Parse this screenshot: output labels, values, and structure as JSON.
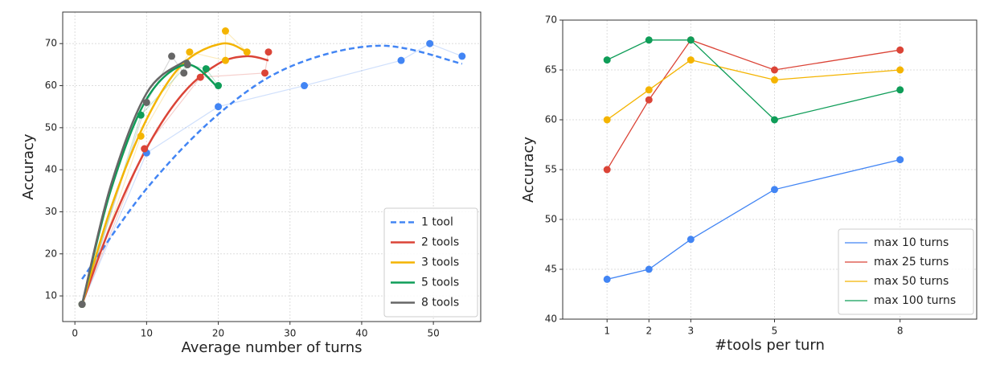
{
  "chart_data": [
    {
      "type": "scatter-fit",
      "xlabel": "Average number of turns",
      "ylabel": "Accuracy",
      "xlim": [
        -1.7,
        56.6
      ],
      "ylim": [
        3.9,
        77.5
      ],
      "xticks": [
        0,
        10,
        20,
        30,
        40,
        50
      ],
      "yticks": [
        10,
        20,
        30,
        40,
        50,
        60,
        70
      ],
      "grid": true,
      "legend": "lower right",
      "series": [
        {
          "name": "1 tool",
          "color": "#4285f4",
          "fit_style": "dashed",
          "x": [
            1,
            10,
            20,
            32,
            45.5,
            49.5,
            54
          ],
          "values": [
            8,
            44,
            55,
            60,
            66,
            70,
            67
          ],
          "fit": {
            "x": [
              1,
              10,
              20,
              30,
              42.5,
              54
            ],
            "y": [
              14,
              35.5,
              53.2,
              64.5,
              69.5,
              65.2
            ]
          }
        },
        {
          "name": "2 tools",
          "color": "#db4437",
          "fit_style": "solid",
          "x": [
            1,
            9.7,
            17.5,
            26.5,
            27
          ],
          "values": [
            8,
            45,
            62,
            63,
            68
          ],
          "fit": {
            "x": [
              1,
              5,
              10,
              15,
              20,
              24,
              27
            ],
            "y": [
              8,
              26.7,
              45.1,
              58,
              65.2,
              67,
              66
            ]
          }
        },
        {
          "name": "3 tools",
          "color": "#f4b400",
          "fit_style": "solid",
          "x": [
            1,
            9.2,
            16,
            21,
            21,
            24
          ],
          "values": [
            8,
            48,
            68,
            66,
            73,
            68
          ],
          "fit": {
            "x": [
              1,
              5,
              10,
              15,
              20.5,
              24
            ],
            "y": [
              8,
              30.8,
              52,
              65.1,
              70,
              68
            ]
          }
        },
        {
          "name": "5 tools",
          "color": "#0f9d58",
          "fit_style": "solid",
          "x": [
            1,
            9.2,
            15.7,
            18.3,
            20
          ],
          "values": [
            8,
            53,
            65,
            64,
            60
          ],
          "fit": {
            "x": [
              1,
              5,
              10,
              15.5,
              20
            ],
            "y": [
              8,
              35.1,
              56.8,
              65,
              59.5
            ]
          }
        },
        {
          "name": "8 tools",
          "color": "#666666",
          "fit_style": "solid",
          "x": [
            1,
            10,
            13.5,
            15.2,
            15.7
          ],
          "values": [
            8,
            56,
            67,
            63,
            65
          ],
          "fit": {
            "x": [
              1,
              5,
              10,
              15,
              16
            ],
            "y": [
              8,
              36.2,
              58.2,
              65.5,
              65.2
            ]
          }
        }
      ]
    },
    {
      "type": "line",
      "xlabel": "#tools per turn",
      "ylabel": "Accuracy",
      "xlim": [
        -0.06,
        9.83
      ],
      "ylim": [
        40,
        70
      ],
      "xticks": [
        1,
        2,
        3,
        5,
        8
      ],
      "yticks": [
        40,
        45,
        50,
        55,
        60,
        65,
        70
      ],
      "grid": true,
      "legend": "lower right",
      "x": [
        1,
        2,
        3,
        5,
        8
      ],
      "series": [
        {
          "name": "max 10 turns",
          "color": "#4285f4",
          "values": [
            44,
            45,
            48,
            53,
            56
          ]
        },
        {
          "name": "max 25 turns",
          "color": "#db4437",
          "values": [
            55,
            62,
            68,
            65,
            67
          ]
        },
        {
          "name": "max 50 turns",
          "color": "#f4b400",
          "values": [
            60,
            63,
            66,
            64,
            65
          ]
        },
        {
          "name": "max 100 turns",
          "color": "#0f9d58",
          "values": [
            66,
            68,
            68,
            60,
            63
          ]
        }
      ]
    }
  ]
}
